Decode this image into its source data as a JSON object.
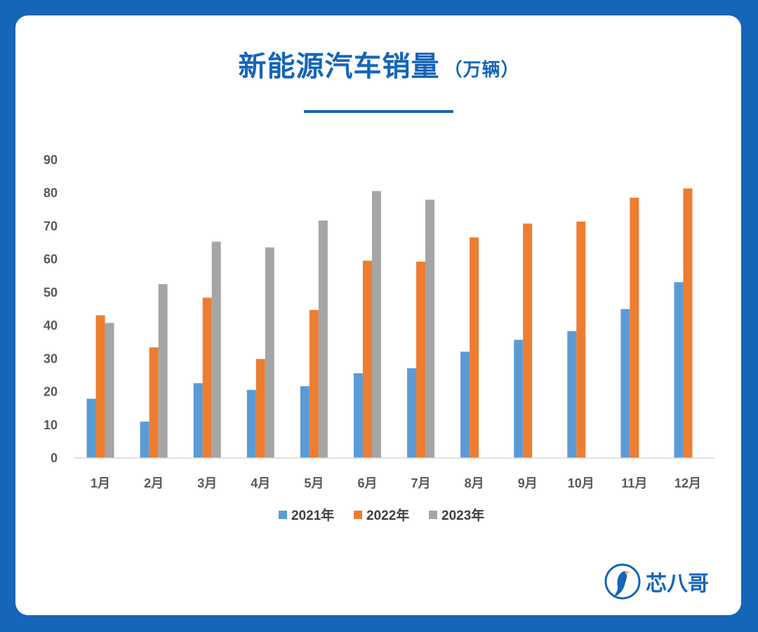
{
  "title": {
    "main": "新能源汽车销量",
    "unit": "（万辆）"
  },
  "brand": {
    "name": "芯八哥",
    "icon": "bird-logo-icon"
  },
  "colors": {
    "background": "#1565b8",
    "s2021": "#5b9bd5",
    "s2022": "#ed7d31",
    "s2023": "#a5a5a5",
    "grid": "#d9d9d9"
  },
  "chart_data": {
    "type": "bar",
    "title": "新能源汽车销量（万辆）",
    "categories": [
      "1月",
      "2月",
      "3月",
      "4月",
      "5月",
      "6月",
      "7月",
      "8月",
      "9月",
      "10月",
      "11月",
      "12月"
    ],
    "series": [
      {
        "name": "2021年",
        "values": [
          17.9,
          11.0,
          22.6,
          20.6,
          21.7,
          25.6,
          27.1,
          32.1,
          35.7,
          38.3,
          45.0,
          53.1
        ]
      },
      {
        "name": "2022年",
        "values": [
          43.1,
          33.4,
          48.4,
          29.9,
          44.7,
          59.6,
          59.3,
          66.6,
          70.8,
          71.4,
          78.6,
          81.4
        ]
      },
      {
        "name": "2023年",
        "values": [
          40.8,
          52.5,
          65.3,
          63.6,
          71.7,
          80.6,
          78.0,
          null,
          null,
          null,
          null,
          null
        ]
      }
    ],
    "yticks": [
      0,
      10,
      20,
      30,
      40,
      50,
      60,
      70,
      80,
      90
    ],
    "ylim": [
      0,
      90
    ],
    "grid": false,
    "legend": "bottom"
  }
}
